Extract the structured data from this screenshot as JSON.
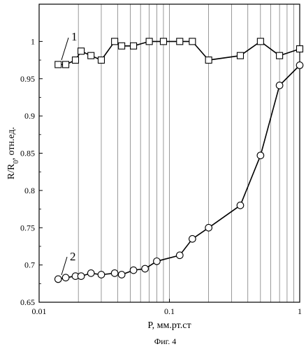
{
  "chart_data": {
    "type": "line",
    "x_scale": "log",
    "y_scale": "linear",
    "xlim": [
      0.01,
      1
    ],
    "ylim": [
      0.65,
      1.05
    ],
    "x_ticks": [
      {
        "value": 0.01,
        "label": "0.01"
      },
      {
        "value": 0.1,
        "label": "0.1"
      },
      {
        "value": 1,
        "label": "1"
      }
    ],
    "y_ticks": [
      {
        "value": 0.65,
        "label": "0.65"
      },
      {
        "value": 0.7,
        "label": "0.7"
      },
      {
        "value": 0.75,
        "label": "0.75"
      },
      {
        "value": 0.8,
        "label": "0.8"
      },
      {
        "value": 0.85,
        "label": "0.85"
      },
      {
        "value": 0.9,
        "label": "0.9"
      },
      {
        "value": 0.95,
        "label": "0.95"
      },
      {
        "value": 1,
        "label": "1"
      }
    ],
    "vertical_grid_x": [
      0.02,
      0.03,
      0.04,
      0.05,
      0.06,
      0.07,
      0.08,
      0.09,
      0.1,
      0.2,
      0.3,
      0.4,
      0.5,
      0.6,
      0.7,
      0.8,
      0.9
    ],
    "horizontal_grid": false,
    "xlabel": "P, мм.рт.ст",
    "ylabel_main": "R/R",
    "ylabel_subscript": "0",
    "ylabel_rest": ", отн.ед.",
    "caption": "Фиг. 4",
    "series": [
      {
        "label": "1",
        "marker": "square",
        "x": [
          0.014,
          0.016,
          0.019,
          0.021,
          0.025,
          0.03,
          0.038,
          0.043,
          0.053,
          0.07,
          0.09,
          0.12,
          0.15,
          0.2,
          0.35,
          0.5,
          0.7,
          1.0
        ],
        "y": [
          0.969,
          0.969,
          0.975,
          0.987,
          0.981,
          0.975,
          1.0,
          0.994,
          0.994,
          1.0,
          1.0,
          1.0,
          1.0,
          0.975,
          0.981,
          1.0,
          0.981,
          0.99
        ]
      },
      {
        "label": "2",
        "marker": "circle",
        "x": [
          0.014,
          0.016,
          0.019,
          0.021,
          0.025,
          0.03,
          0.038,
          0.043,
          0.053,
          0.065,
          0.08,
          0.12,
          0.15,
          0.2,
          0.35,
          0.5,
          0.7,
          1.0
        ],
        "y": [
          0.681,
          0.683,
          0.685,
          0.685,
          0.689,
          0.687,
          0.689,
          0.687,
          0.693,
          0.695,
          0.705,
          0.713,
          0.735,
          0.75,
          0.78,
          0.847,
          0.941,
          0.968
        ]
      }
    ]
  }
}
